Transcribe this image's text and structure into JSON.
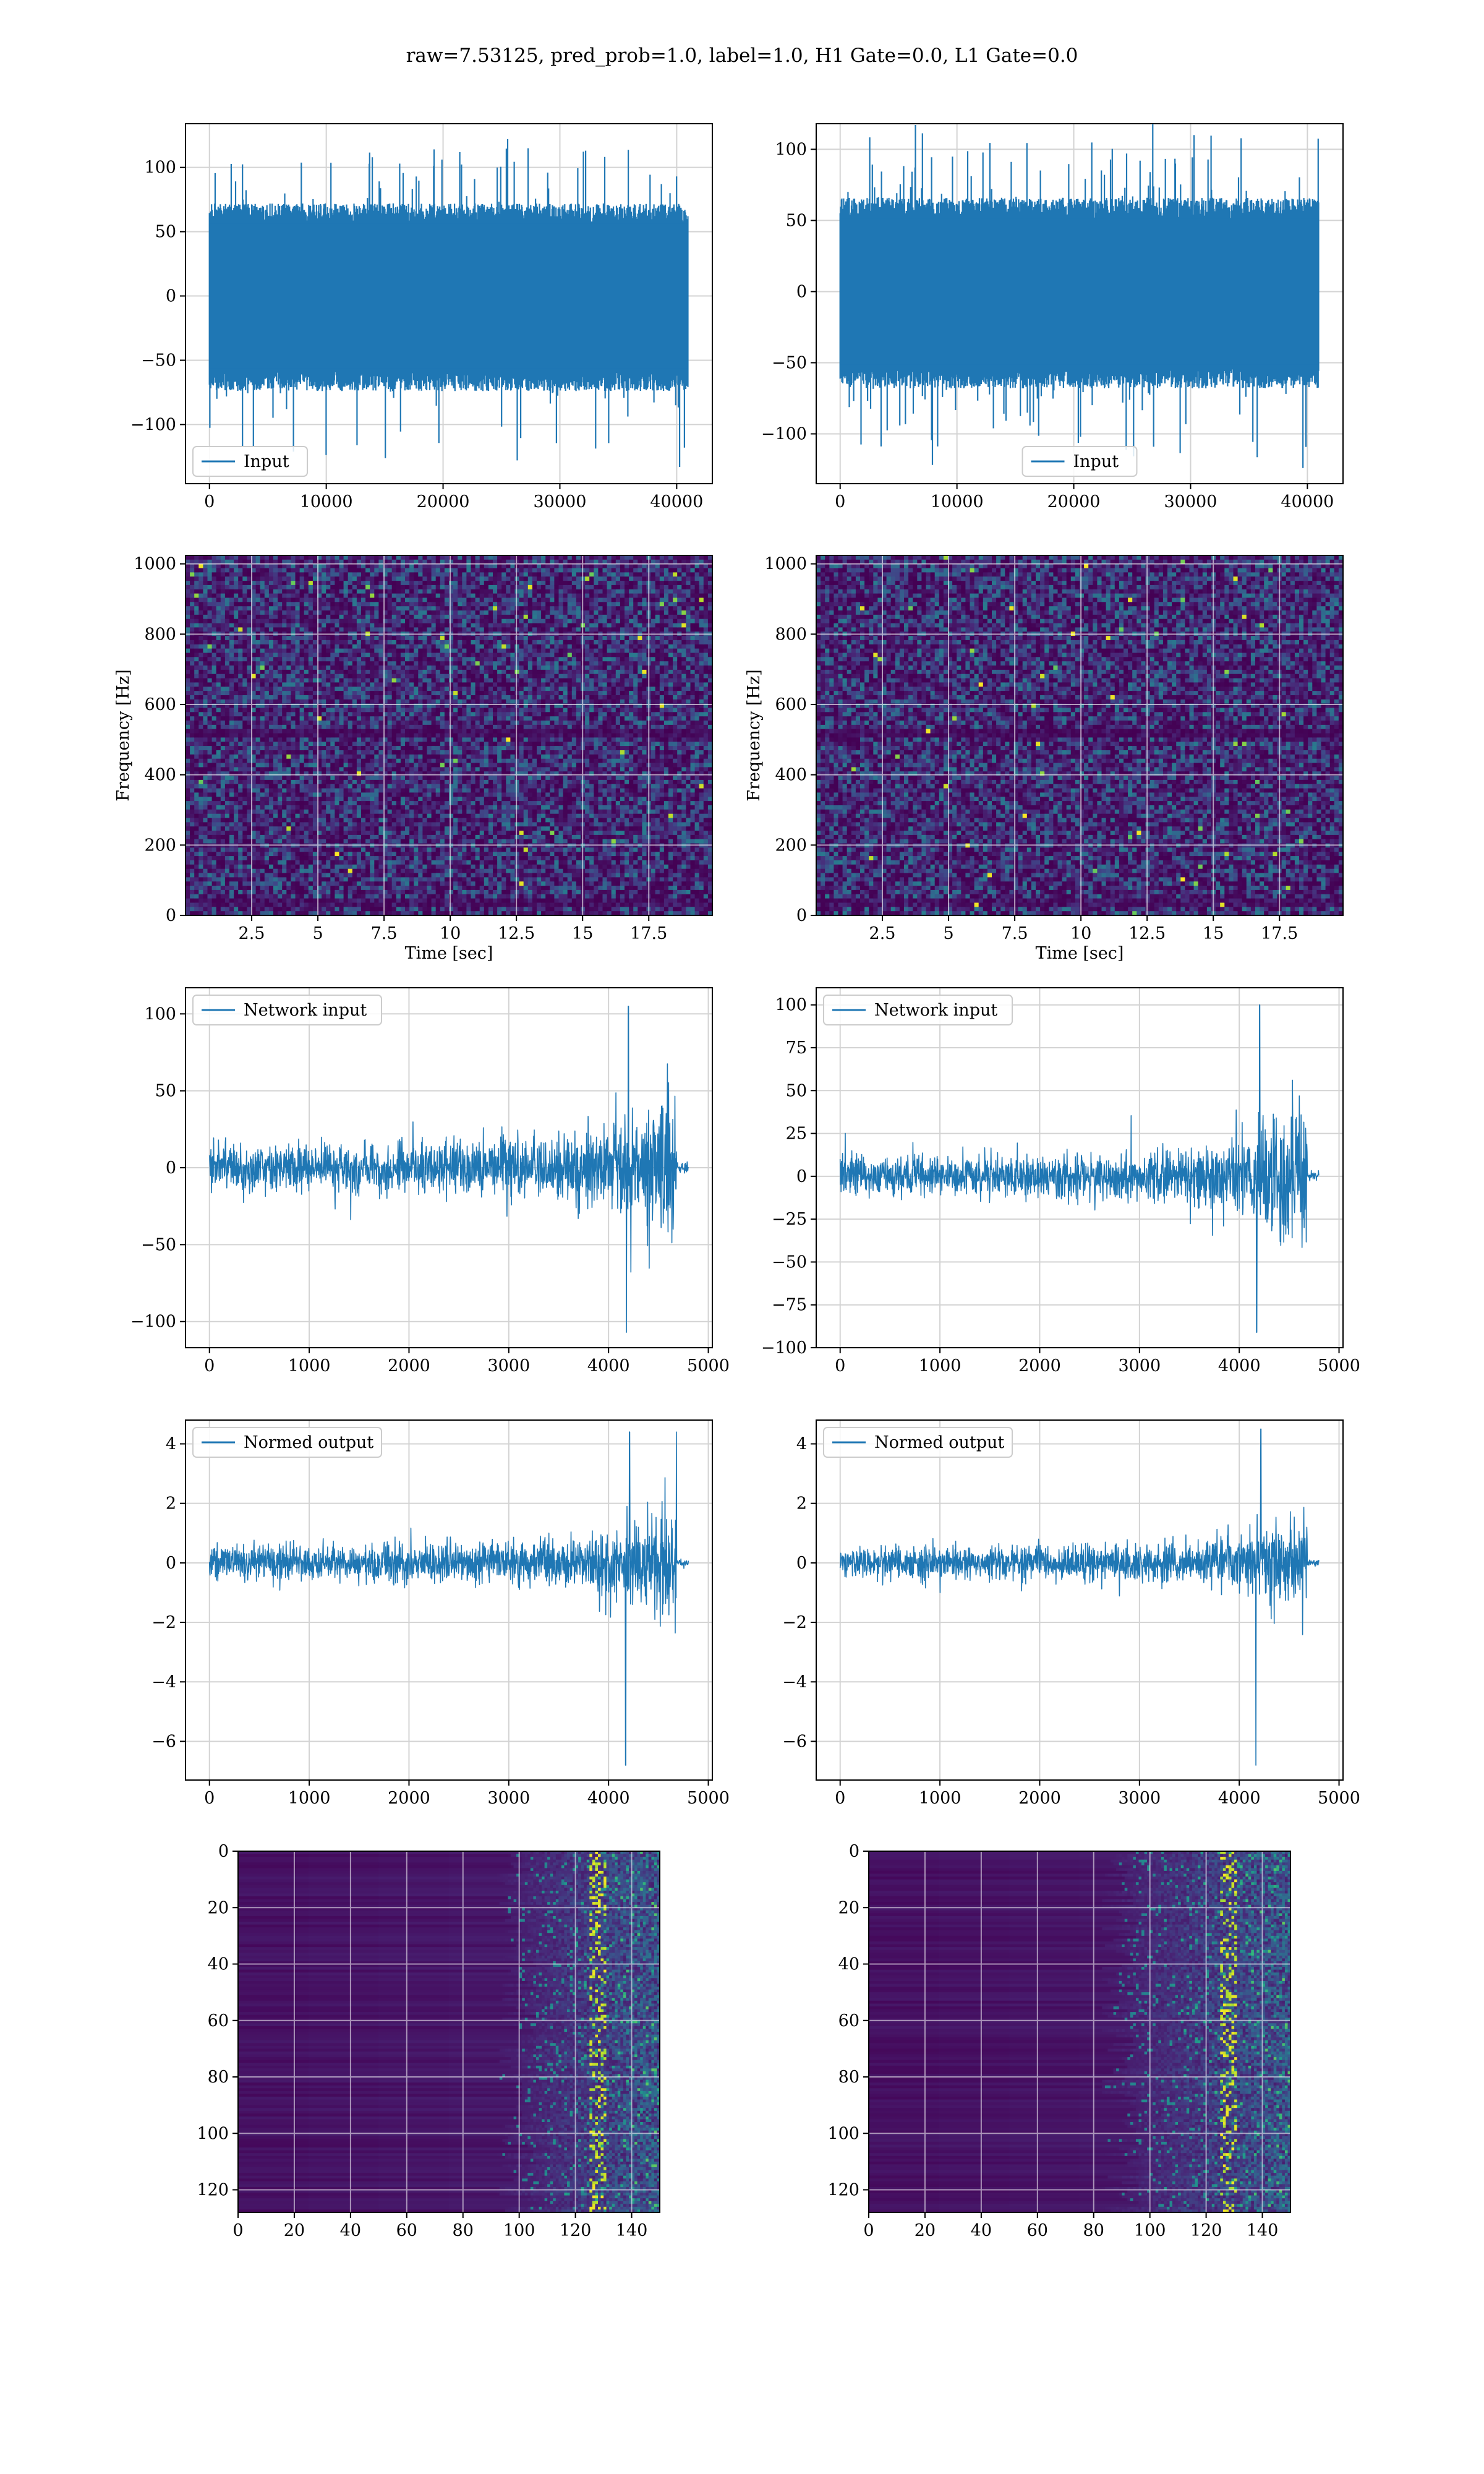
{
  "suptitle": "raw=7.53125, pred_prob=1.0, label=1.0, H1 Gate=0.0, L1 Gate=0.0",
  "colors": {
    "line": "#1f77b4",
    "grid": "#b0b0b0",
    "axes": "#000000",
    "viridis_low": "#440154",
    "viridis_mid": "#21918c",
    "viridis_high": "#fde725"
  },
  "chart_data": [
    {
      "id": "input-h1",
      "type": "line",
      "legend": "Input",
      "legend_loc": "lower left",
      "xlim": [
        -2050,
        43050
      ],
      "ylim": [
        -146,
        134
      ],
      "xticks": [
        0,
        10000,
        20000,
        30000,
        40000
      ],
      "yticks": [
        -100,
        -50,
        0,
        50,
        100
      ],
      "xlabel": "",
      "ylabel": "",
      "grid": true,
      "signal": {
        "kind": "noise",
        "n": 40960,
        "amp": 72,
        "peak": 122,
        "trough": -133,
        "bias": -2
      }
    },
    {
      "id": "input-l1",
      "type": "line",
      "legend": "Input",
      "legend_loc": "lower center",
      "xlim": [
        -2050,
        43050
      ],
      "ylim": [
        -135,
        118
      ],
      "xticks": [
        0,
        10000,
        20000,
        30000,
        40000
      ],
      "yticks": [
        -100,
        -50,
        0,
        50,
        100
      ],
      "xlabel": "",
      "ylabel": "",
      "grid": true,
      "signal": {
        "kind": "noise",
        "n": 40960,
        "amp": 66,
        "peak": 118,
        "trough": -124,
        "bias": -2
      }
    },
    {
      "id": "spec-h1",
      "type": "heatmap",
      "style": "spectrogram",
      "xlim": [
        0,
        19.9
      ],
      "ylim": [
        0,
        1024
      ],
      "xticks": [
        2.5,
        5.0,
        7.5,
        10.0,
        12.5,
        15.0,
        17.5
      ],
      "yticks": [
        0,
        200,
        400,
        600,
        800,
        1000
      ],
      "xlabel": "Time [sec]",
      "ylabel": "Frequency [Hz]",
      "grid": true
    },
    {
      "id": "spec-l1",
      "type": "heatmap",
      "style": "spectrogram",
      "xlim": [
        0,
        19.9
      ],
      "ylim": [
        0,
        1024
      ],
      "xticks": [
        2.5,
        5.0,
        7.5,
        10.0,
        12.5,
        15.0,
        17.5
      ],
      "yticks": [
        0,
        200,
        400,
        600,
        800,
        1000
      ],
      "xlabel": "Time [sec]",
      "ylabel": "Frequency [Hz]",
      "grid": true
    },
    {
      "id": "net-h1",
      "type": "line",
      "legend": "Network input",
      "legend_loc": "upper left",
      "xlim": [
        -240,
        5040
      ],
      "ylim": [
        -117,
        117
      ],
      "xticks": [
        0,
        1000,
        2000,
        3000,
        4000,
        5000
      ],
      "yticks": [
        -100,
        -50,
        0,
        50,
        100
      ],
      "xlabel": "",
      "ylabel": "",
      "grid": true,
      "signal": {
        "kind": "chirp",
        "n": 4800,
        "base": 13,
        "growth": 25,
        "tail": 4680,
        "peak": 105,
        "trough": -107
      }
    },
    {
      "id": "net-l1",
      "type": "line",
      "legend": "Network input",
      "legend_loc": "upper left",
      "xlim": [
        -240,
        5040
      ],
      "ylim": [
        -100,
        110
      ],
      "xticks": [
        0,
        1000,
        2000,
        3000,
        4000,
        5000
      ],
      "yticks": [
        -100,
        -75,
        -50,
        -25,
        0,
        25,
        50,
        75,
        100
      ],
      "xlabel": "",
      "ylabel": "",
      "grid": true,
      "signal": {
        "kind": "chirp",
        "n": 4800,
        "base": 10,
        "growth": 24,
        "tail": 4680,
        "peak": 100,
        "trough": -91
      }
    },
    {
      "id": "norm-h1",
      "type": "line",
      "legend": "Normed output",
      "legend_loc": "upper left",
      "xlim": [
        -240,
        5040
      ],
      "ylim": [
        -7.3,
        4.8
      ],
      "xticks": [
        0,
        1000,
        2000,
        3000,
        4000,
        5000
      ],
      "yticks": [
        -6,
        -4,
        -2,
        0,
        2,
        4
      ],
      "xlabel": "",
      "ylabel": "",
      "grid": true,
      "signal": {
        "kind": "chirp",
        "n": 4800,
        "base": 0.5,
        "growth": 1.05,
        "tail": 4680,
        "peak": 4.4,
        "trough": -6.8
      }
    },
    {
      "id": "norm-l1",
      "type": "line",
      "legend": "Normed output",
      "legend_loc": "upper left",
      "xlim": [
        -240,
        5040
      ],
      "ylim": [
        -7.3,
        4.8
      ],
      "xticks": [
        0,
        1000,
        2000,
        3000,
        4000,
        5000
      ],
      "yticks": [
        -6,
        -4,
        -2,
        0,
        2,
        4
      ],
      "xlabel": "",
      "ylabel": "",
      "grid": true,
      "signal": {
        "kind": "chirp",
        "n": 4800,
        "base": 0.45,
        "growth": 1.05,
        "tail": 4680,
        "peak": 4.5,
        "trough": -6.8
      }
    },
    {
      "id": "feat-h1",
      "type": "heatmap",
      "style": "features",
      "onset": 98,
      "xlim": [
        0,
        150
      ],
      "ylim": [
        128,
        0
      ],
      "inverted_y": true,
      "xticks": [
        0,
        20,
        40,
        60,
        80,
        100,
        120,
        140
      ],
      "yticks": [
        0,
        20,
        40,
        60,
        80,
        100,
        120
      ],
      "xlabel": "",
      "ylabel": "",
      "grid": true
    },
    {
      "id": "feat-l1",
      "type": "heatmap",
      "style": "features",
      "onset": 88,
      "xlim": [
        0,
        150
      ],
      "ylim": [
        128,
        0
      ],
      "inverted_y": true,
      "xticks": [
        0,
        20,
        40,
        60,
        80,
        100,
        120,
        140
      ],
      "yticks": [
        0,
        20,
        40,
        60,
        80,
        100,
        120
      ],
      "xlabel": "",
      "ylabel": "",
      "grid": true
    }
  ]
}
